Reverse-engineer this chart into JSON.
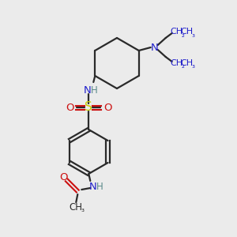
{
  "bg_color": "#ebebeb",
  "bond_color": "#2a2a2a",
  "N_color": "#2020cc",
  "O_color": "#cc1010",
  "S_color": "#cccc00",
  "NH_color": "#5a8a8a",
  "H_color": "#5a8a8a",
  "figsize": [
    3.0,
    3.0
  ],
  "dpi": 100,
  "xlim": [
    0,
    300
  ],
  "ylim": [
    0,
    300
  ]
}
